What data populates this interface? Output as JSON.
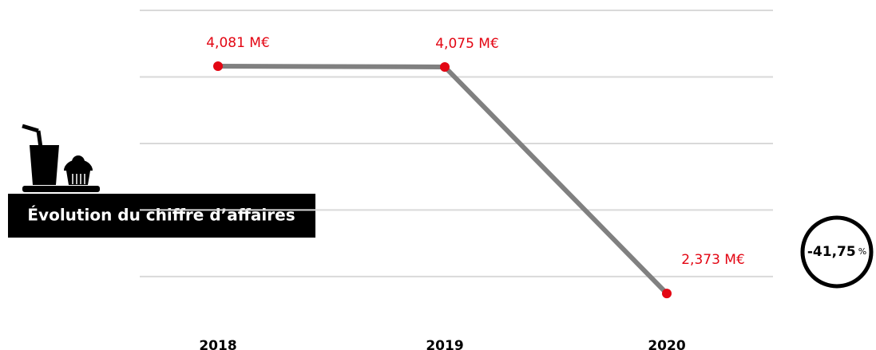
{
  "chart_data": {
    "type": "line",
    "title": "Évolution du chiffre d’affaires",
    "categories": [
      "2018",
      "2019",
      "2020"
    ],
    "series": [
      {
        "color": "#808080",
        "point_color": "#e30613",
        "values": [
          4.081,
          4.075,
          2.373
        ],
        "value_labels": [
          "4,081 M€",
          "4,075 M€",
          "2,373 M€"
        ]
      }
    ],
    "ylim": [
      2.2,
      4.5
    ],
    "yticks": [
      2.5,
      3,
      3.5,
      4,
      4.5
    ],
    "grid": true,
    "change_label": "-41,75",
    "change_unit": "%"
  }
}
